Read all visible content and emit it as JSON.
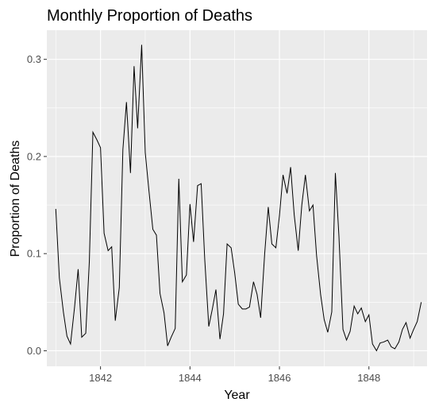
{
  "chart_data": {
    "type": "line",
    "title": "Monthly Proportion of Deaths",
    "xlabel": "Year",
    "ylabel": "Proportion of Deaths",
    "x_ticks": [
      "1842",
      "1844",
      "1846",
      "1848"
    ],
    "x_tick_values": [
      1842,
      1844,
      1846,
      1848
    ],
    "y_ticks": [
      "0.0",
      "0.1",
      "0.2",
      "0.3"
    ],
    "y_tick_values": [
      0.0,
      0.1,
      0.2,
      0.3
    ],
    "xlim": [
      1840.8,
      1849.3
    ],
    "ylim": [
      -0.016,
      0.33
    ],
    "grid": true,
    "background": "#ebebeb",
    "grid_color": "#ffffff",
    "line_color": "#000000",
    "series": [
      {
        "x": [
          1841.0,
          1841.08,
          1841.17,
          1841.25,
          1841.33,
          1841.42,
          1841.5,
          1841.58,
          1841.67,
          1841.75,
          1841.83,
          1841.92,
          1842.0,
          1842.08,
          1842.17,
          1842.25,
          1842.33,
          1842.42,
          1842.5,
          1842.58,
          1842.67,
          1842.75,
          1842.83,
          1842.92,
          1843.0,
          1843.08,
          1843.17,
          1843.25,
          1843.33,
          1843.42,
          1843.5,
          1843.58,
          1843.67,
          1843.75,
          1843.83,
          1843.92,
          1844.0,
          1844.08,
          1844.17,
          1844.25,
          1844.33,
          1844.42,
          1844.5,
          1844.58,
          1844.67,
          1844.75,
          1844.83,
          1844.92,
          1845.0,
          1845.08,
          1845.17,
          1845.25,
          1845.33,
          1845.42,
          1845.5,
          1845.58,
          1845.67,
          1845.75,
          1845.83,
          1845.92,
          1846.0,
          1846.08,
          1846.17,
          1846.25,
          1846.33,
          1846.42,
          1846.5,
          1846.58,
          1846.67,
          1846.75,
          1846.83,
          1846.92,
          1847.0,
          1847.08,
          1847.17,
          1847.25,
          1847.33,
          1847.42,
          1847.5,
          1847.58,
          1847.67,
          1847.75,
          1847.83,
          1847.92,
          1848.0,
          1848.08,
          1848.17,
          1848.25,
          1848.33,
          1848.42,
          1848.5,
          1848.58,
          1848.67,
          1848.75,
          1848.83,
          1848.92,
          1849.0,
          1849.08,
          1849.17
        ],
        "values": [
          0.146,
          0.075,
          0.04,
          0.015,
          0.007,
          0.045,
          0.084,
          0.014,
          0.018,
          0.092,
          0.225,
          0.217,
          0.209,
          0.121,
          0.103,
          0.107,
          0.031,
          0.065,
          0.207,
          0.256,
          0.183,
          0.293,
          0.229,
          0.315,
          0.204,
          0.166,
          0.125,
          0.119,
          0.059,
          0.039,
          0.005,
          0.014,
          0.023,
          0.177,
          0.071,
          0.078,
          0.151,
          0.112,
          0.17,
          0.172,
          0.094,
          0.025,
          0.043,
          0.063,
          0.012,
          0.038,
          0.11,
          0.106,
          0.08,
          0.048,
          0.043,
          0.043,
          0.045,
          0.071,
          0.058,
          0.034,
          0.1,
          0.148,
          0.11,
          0.106,
          0.139,
          0.181,
          0.162,
          0.189,
          0.14,
          0.103,
          0.15,
          0.181,
          0.144,
          0.15,
          0.098,
          0.058,
          0.032,
          0.019,
          0.04,
          0.183,
          0.118,
          0.022,
          0.011,
          0.02,
          0.046,
          0.038,
          0.044,
          0.03,
          0.037,
          0.007,
          0.0,
          0.008,
          0.009,
          0.011,
          0.004,
          0.002,
          0.009,
          0.022,
          0.029,
          0.013,
          0.022,
          0.03,
          0.05
        ]
      }
    ]
  }
}
